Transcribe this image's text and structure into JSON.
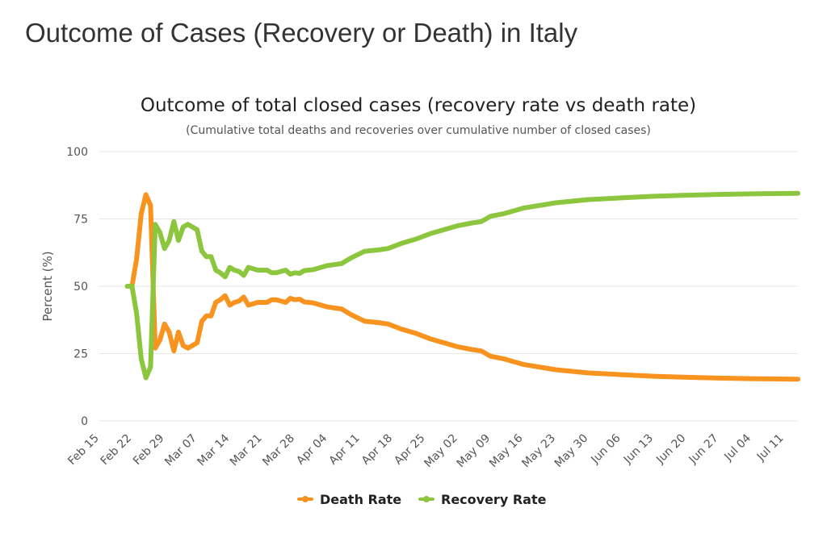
{
  "page": {
    "title": "Outcome of Cases (Recovery or Death) in Italy"
  },
  "chart_data": {
    "type": "line",
    "title": "Outcome of total closed cases (recovery rate vs death rate)",
    "subtitle": "(Cumulative total deaths and recoveries over cumulative number of closed cases)",
    "ylabel": "Percent (%)",
    "xlabel": "",
    "ylim": [
      0,
      100
    ],
    "yticks": [
      "0",
      "25",
      "50",
      "75",
      "100"
    ],
    "xlim": [
      "2020-02-15",
      "2020-07-14"
    ],
    "xticks": [
      "Feb 15",
      "Feb 22",
      "Feb 29",
      "Mar 07",
      "Mar 14",
      "Mar 21",
      "Mar 28",
      "Apr 04",
      "Apr 11",
      "Apr 18",
      "Apr 25",
      "May 02",
      "May 09",
      "May 16",
      "May 23",
      "May 30",
      "Jun 06",
      "Jun 13",
      "Jun 20",
      "Jun 27",
      "Jul 04",
      "Jul 11"
    ],
    "legend_position": "bottom-center",
    "grid": true,
    "series": [
      {
        "name": "Death Rate",
        "color": "#f7931e",
        "points": [
          [
            "2020-02-21",
            50
          ],
          [
            "2020-02-22",
            50
          ],
          [
            "2020-02-23",
            60
          ],
          [
            "2020-02-24",
            77
          ],
          [
            "2020-02-25",
            84
          ],
          [
            "2020-02-26",
            80
          ],
          [
            "2020-02-27",
            27
          ],
          [
            "2020-02-28",
            30
          ],
          [
            "2020-02-29",
            36
          ],
          [
            "2020-03-01",
            33
          ],
          [
            "2020-03-02",
            26
          ],
          [
            "2020-03-03",
            33
          ],
          [
            "2020-03-04",
            28
          ],
          [
            "2020-03-05",
            27
          ],
          [
            "2020-03-06",
            28
          ],
          [
            "2020-03-07",
            29
          ],
          [
            "2020-03-08",
            37
          ],
          [
            "2020-03-09",
            39
          ],
          [
            "2020-03-10",
            39
          ],
          [
            "2020-03-11",
            44
          ],
          [
            "2020-03-12",
            45
          ],
          [
            "2020-03-13",
            46.5
          ],
          [
            "2020-03-14",
            43
          ],
          [
            "2020-03-15",
            44
          ],
          [
            "2020-03-16",
            44.5
          ],
          [
            "2020-03-17",
            46
          ],
          [
            "2020-03-18",
            43
          ],
          [
            "2020-03-19",
            43.5
          ],
          [
            "2020-03-20",
            44
          ],
          [
            "2020-03-21",
            44
          ],
          [
            "2020-03-22",
            44
          ],
          [
            "2020-03-23",
            45
          ],
          [
            "2020-03-24",
            45
          ],
          [
            "2020-03-25",
            44.5
          ],
          [
            "2020-03-26",
            44
          ],
          [
            "2020-03-27",
            45.5
          ],
          [
            "2020-03-28",
            45
          ],
          [
            "2020-03-29",
            45.2
          ],
          [
            "2020-03-30",
            44.2
          ],
          [
            "2020-04-01",
            43.8
          ],
          [
            "2020-04-04",
            42.3
          ],
          [
            "2020-04-07",
            41.6
          ],
          [
            "2020-04-09",
            39.5
          ],
          [
            "2020-04-12",
            37
          ],
          [
            "2020-04-15",
            36.5
          ],
          [
            "2020-04-17",
            36
          ],
          [
            "2020-04-20",
            34
          ],
          [
            "2020-04-23",
            32.5
          ],
          [
            "2020-04-26",
            30.5
          ],
          [
            "2020-04-29",
            29
          ],
          [
            "2020-05-02",
            27.5
          ],
          [
            "2020-05-05",
            26.5
          ],
          [
            "2020-05-07",
            26
          ],
          [
            "2020-05-09",
            24
          ],
          [
            "2020-05-12",
            23
          ],
          [
            "2020-05-16",
            21
          ],
          [
            "2020-05-23",
            19
          ],
          [
            "2020-05-30",
            17.8
          ],
          [
            "2020-06-06",
            17.2
          ],
          [
            "2020-06-13",
            16.6
          ],
          [
            "2020-06-20",
            16.2
          ],
          [
            "2020-06-27",
            15.9
          ],
          [
            "2020-07-04",
            15.7
          ],
          [
            "2020-07-14",
            15.5
          ]
        ]
      },
      {
        "name": "Recovery Rate",
        "color": "#8cc63f",
        "points": [
          [
            "2020-02-21",
            50
          ],
          [
            "2020-02-22",
            50
          ],
          [
            "2020-02-23",
            40
          ],
          [
            "2020-02-24",
            23
          ],
          [
            "2020-02-25",
            16
          ],
          [
            "2020-02-26",
            20
          ],
          [
            "2020-02-27",
            73
          ],
          [
            "2020-02-28",
            70
          ],
          [
            "2020-02-29",
            64
          ],
          [
            "2020-03-01",
            67
          ],
          [
            "2020-03-02",
            74
          ],
          [
            "2020-03-03",
            67
          ],
          [
            "2020-03-04",
            72
          ],
          [
            "2020-03-05",
            73
          ],
          [
            "2020-03-06",
            72
          ],
          [
            "2020-03-07",
            71
          ],
          [
            "2020-03-08",
            63
          ],
          [
            "2020-03-09",
            61
          ],
          [
            "2020-03-10",
            61
          ],
          [
            "2020-03-11",
            56
          ],
          [
            "2020-03-12",
            55
          ],
          [
            "2020-03-13",
            53.5
          ],
          [
            "2020-03-14",
            57
          ],
          [
            "2020-03-15",
            56
          ],
          [
            "2020-03-16",
            55.5
          ],
          [
            "2020-03-17",
            54
          ],
          [
            "2020-03-18",
            57
          ],
          [
            "2020-03-19",
            56.5
          ],
          [
            "2020-03-20",
            56
          ],
          [
            "2020-03-21",
            56
          ],
          [
            "2020-03-22",
            56
          ],
          [
            "2020-03-23",
            55
          ],
          [
            "2020-03-24",
            55
          ],
          [
            "2020-03-25",
            55.5
          ],
          [
            "2020-03-26",
            56
          ],
          [
            "2020-03-27",
            54.5
          ],
          [
            "2020-03-28",
            55
          ],
          [
            "2020-03-29",
            54.8
          ],
          [
            "2020-03-30",
            55.8
          ],
          [
            "2020-04-01",
            56.2
          ],
          [
            "2020-04-04",
            57.7
          ],
          [
            "2020-04-07",
            58.4
          ],
          [
            "2020-04-09",
            60.5
          ],
          [
            "2020-04-12",
            63
          ],
          [
            "2020-04-15",
            63.5
          ],
          [
            "2020-04-17",
            64
          ],
          [
            "2020-04-20",
            66
          ],
          [
            "2020-04-23",
            67.5
          ],
          [
            "2020-04-26",
            69.5
          ],
          [
            "2020-04-29",
            71
          ],
          [
            "2020-05-02",
            72.5
          ],
          [
            "2020-05-05",
            73.5
          ],
          [
            "2020-05-07",
            74
          ],
          [
            "2020-05-09",
            76
          ],
          [
            "2020-05-12",
            77
          ],
          [
            "2020-05-16",
            79
          ],
          [
            "2020-05-23",
            81
          ],
          [
            "2020-05-30",
            82.2
          ],
          [
            "2020-06-06",
            82.8
          ],
          [
            "2020-06-13",
            83.4
          ],
          [
            "2020-06-20",
            83.8
          ],
          [
            "2020-06-27",
            84.1
          ],
          [
            "2020-07-04",
            84.3
          ],
          [
            "2020-07-14",
            84.5
          ]
        ]
      }
    ]
  }
}
